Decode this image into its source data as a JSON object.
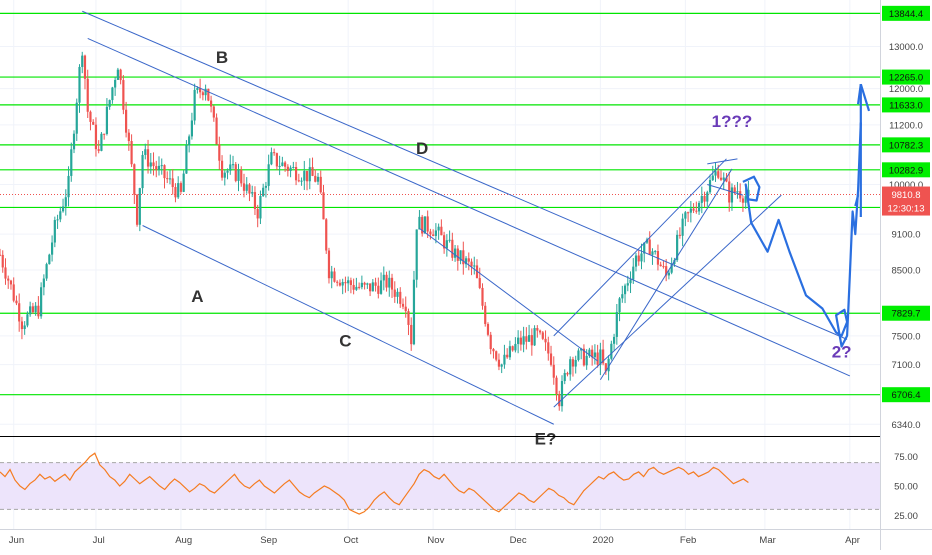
{
  "chart_data": {
    "type": "candlestick",
    "price_axis": {
      "ticks": [
        "13000.0",
        "12000.0",
        "11200.0",
        "10000.0",
        "9100.0",
        "8500.0",
        "7500.0",
        "7100.0",
        "6340.0"
      ],
      "ylim": [
        6340,
        13850
      ],
      "scale": "log"
    },
    "time_axis": {
      "labels": [
        "Jun",
        "Jul",
        "Aug",
        "Sep",
        "Oct",
        "Nov",
        "Dec",
        "2020",
        "Feb",
        "Mar",
        "Apr"
      ]
    },
    "horizontal_levels": [
      {
        "label": "13844.4",
        "value": 13844.4
      },
      {
        "label": "12265.0",
        "value": 12265.0
      },
      {
        "label": "11633.0",
        "value": 11633.0
      },
      {
        "label": "10782.3",
        "value": 10782.3
      },
      {
        "label": "10282.9",
        "value": 10282.9
      },
      {
        "label": "9573.4",
        "value": 9573.4
      },
      {
        "label": "7829.7",
        "value": 7829.7
      },
      {
        "label": "6706.4",
        "value": 6706.4
      }
    ],
    "current_price": {
      "label": "9810.8",
      "value": 9810.8,
      "countdown": "12:30:13"
    },
    "wave_labels": [
      {
        "text": "A",
        "date": "2019-08-07",
        "price": 8000
      },
      {
        "text": "B",
        "date": "2019-08-16",
        "price": 12600
      },
      {
        "text": "C",
        "date": "2019-09-30",
        "price": 7350
      },
      {
        "text": "D",
        "date": "2019-10-28",
        "price": 10600
      },
      {
        "text": "E?",
        "date": "2019-12-12",
        "price": 6100
      }
    ],
    "projection_labels": [
      {
        "text": "1???",
        "date": "2020-02-18",
        "price": 11150
      },
      {
        "text": "2?",
        "date": "2020-03-29",
        "price": 7200
      }
    ],
    "rsi": {
      "ticks": [
        "75.00",
        "50.00",
        "25.00"
      ],
      "upper": 70,
      "lower": 30,
      "values": [
        62,
        58,
        64,
        55,
        50,
        47,
        52,
        55,
        60,
        56,
        58,
        54,
        57,
        60,
        55,
        62,
        66,
        70,
        75,
        78,
        68,
        64,
        58,
        55,
        50,
        54,
        60,
        56,
        52,
        55,
        58,
        54,
        50,
        47,
        52,
        56,
        53,
        49,
        45,
        48,
        52,
        50,
        46,
        44,
        48,
        52,
        56,
        60,
        54,
        50,
        48,
        52,
        55,
        50,
        47,
        44,
        48,
        52,
        55,
        50,
        45,
        42,
        40,
        44,
        47,
        50,
        48,
        45,
        42,
        38,
        30,
        28,
        26,
        28,
        32,
        38,
        42,
        45,
        40,
        36,
        34,
        40,
        46,
        52,
        60,
        64,
        62,
        58,
        56,
        60,
        55,
        50,
        46,
        44,
        48,
        46,
        42,
        38,
        34,
        30,
        28,
        32,
        36,
        40,
        44,
        42,
        38,
        36,
        40,
        44,
        48,
        46,
        42,
        40,
        36,
        34,
        40,
        46,
        50,
        54,
        58,
        56,
        60,
        62,
        58,
        55,
        56,
        60,
        62,
        58,
        64,
        66,
        62,
        60,
        62,
        64,
        66,
        64,
        60,
        62,
        58,
        60,
        62,
        66,
        64,
        60,
        56,
        52,
        54,
        56,
        53
      ]
    }
  }
}
